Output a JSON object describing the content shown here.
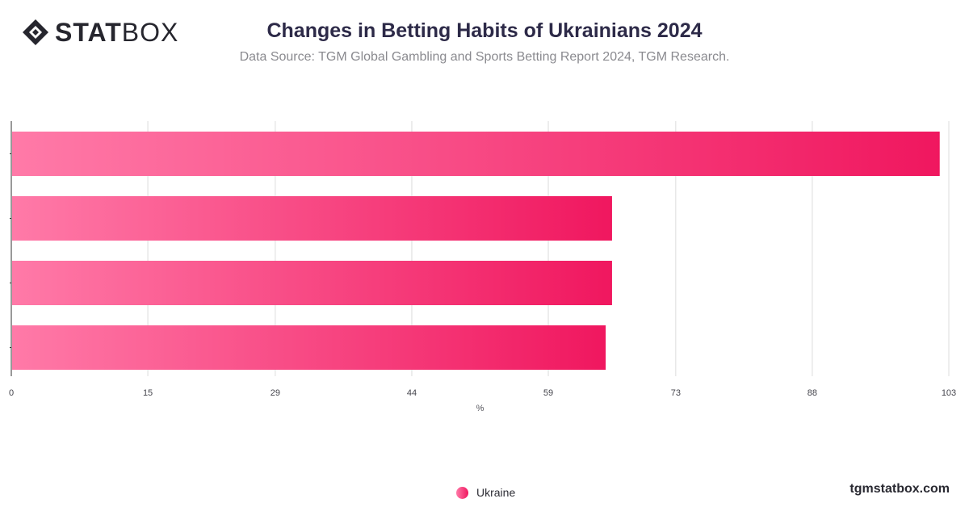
{
  "header": {
    "logo_bold": "STAT",
    "logo_light": "BOX",
    "title": "Changes in Betting Habits of Ukrainians 2024",
    "subtitle": "Data Source: TGM Global Gambling and Sports Betting Report 2024, TGM Research."
  },
  "footer": {
    "site": "tgmstatbox.com"
  },
  "colors": {
    "bar_start": "#ff7aa8",
    "bar_end": "#f0175f",
    "grid": "#dcdcdc",
    "axis": "#333333"
  },
  "chart_data": {
    "type": "bar",
    "orientation": "horizontal",
    "categories": [
      "",
      "",
      "",
      ""
    ],
    "series": [
      {
        "name": "Ukraine",
        "values": [
          102,
          66,
          66,
          65.3
        ]
      }
    ],
    "xlabel": "%",
    "xticks": [
      "0",
      "15",
      "29",
      "44",
      "59",
      "73",
      "88",
      "103"
    ],
    "xlim": [
      0,
      103
    ],
    "grid": true,
    "legend": "bottom-center"
  }
}
